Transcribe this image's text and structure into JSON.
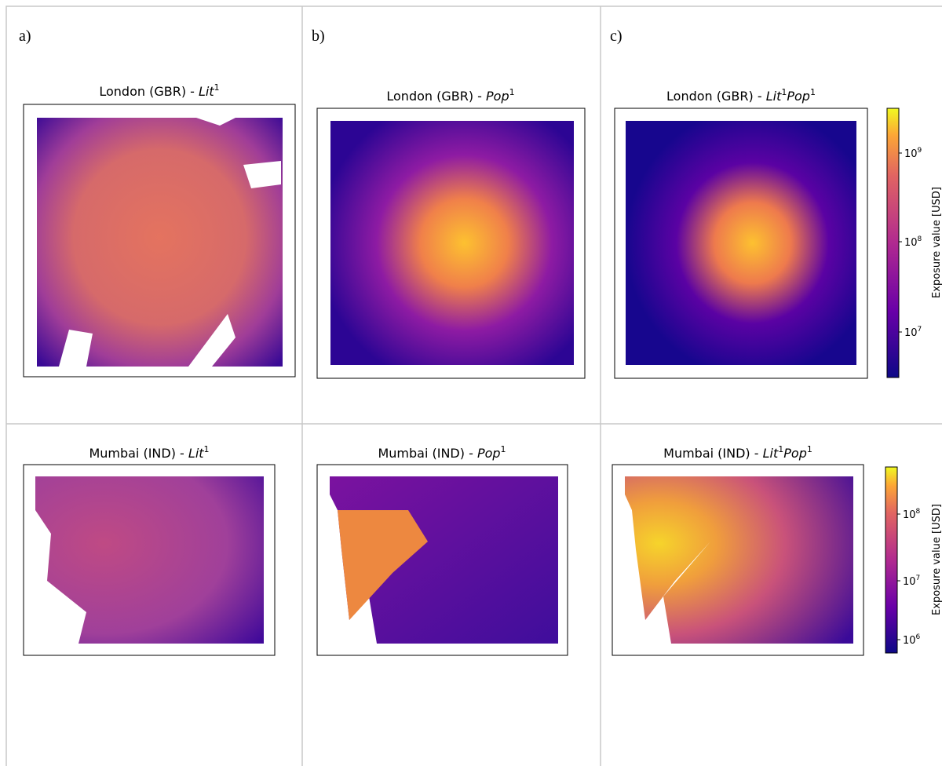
{
  "panels": [
    {
      "label": "a)"
    },
    {
      "label": "b)"
    },
    {
      "label": "c)"
    }
  ],
  "rows": [
    {
      "maps": [
        {
          "prefix": "London (GBR) - ",
          "terms": [
            {
              "base": "Lit",
              "exp": "1"
            }
          ]
        },
        {
          "prefix": "London (GBR) - ",
          "terms": [
            {
              "base": "Pop",
              "exp": "1"
            }
          ]
        },
        {
          "prefix": "London (GBR) - ",
          "terms": [
            {
              "base": "Lit",
              "exp": "1"
            },
            {
              "base": "Pop",
              "exp": "1"
            }
          ]
        }
      ],
      "colorbar": {
        "label": "Exposure value [USD]",
        "ticks": [
          {
            "base": "10",
            "exp": "9"
          },
          {
            "base": "10",
            "exp": "8"
          },
          {
            "base": "10",
            "exp": "7"
          }
        ]
      }
    },
    {
      "maps": [
        {
          "prefix": "Mumbai (IND) - ",
          "terms": [
            {
              "base": "Lit",
              "exp": "1"
            }
          ]
        },
        {
          "prefix": "Mumbai (IND) - ",
          "terms": [
            {
              "base": "Pop",
              "exp": "1"
            }
          ]
        },
        {
          "prefix": "Mumbai (IND) - ",
          "terms": [
            {
              "base": "Lit",
              "exp": "1"
            },
            {
              "base": "Pop",
              "exp": "1"
            }
          ]
        }
      ],
      "colorbar": {
        "label": "Exposure value [USD]",
        "ticks": [
          {
            "base": "10",
            "exp": "8"
          },
          {
            "base": "10",
            "exp": "7"
          },
          {
            "base": "10",
            "exp": "6"
          }
        ]
      }
    }
  ]
}
